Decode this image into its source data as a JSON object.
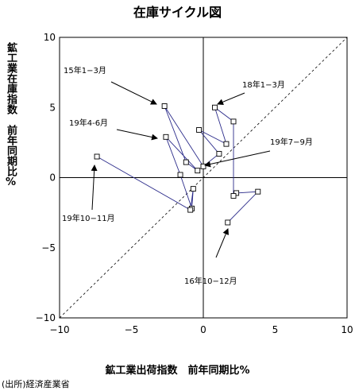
{
  "chart_data": {
    "type": "scatter",
    "title": "在庫サイクル図",
    "xlabel": "鉱工業出荷指数　前年同期比%",
    "ylabel": "鉱工業在庫指数　前年同期比%",
    "xlim": [
      -10,
      10
    ],
    "ylim": [
      -10,
      10
    ],
    "xticks": [
      -10,
      -5,
      0,
      5,
      10
    ],
    "yticks": [
      -10,
      -5,
      0,
      5,
      10
    ],
    "tick_labels_x": [
      "−10",
      "−5",
      "0",
      "5",
      "10"
    ],
    "tick_labels_y": [
      "−10",
      "−5",
      "0",
      "5",
      "10"
    ],
    "grid": false,
    "diagonal_reference_line": true,
    "series": [
      {
        "marker": "hollow-square",
        "color": "#2b2b8a",
        "points": [
          {
            "x": 1.7,
            "y": -3.2
          },
          {
            "x": 3.8,
            "y": -1.0
          },
          {
            "x": 2.3,
            "y": -1.1
          },
          {
            "x": 2.1,
            "y": -1.3
          },
          {
            "x": 2.1,
            "y": 4.0
          },
          {
            "x": 0.8,
            "y": 5.0
          },
          {
            "x": 1.6,
            "y": 2.4
          },
          {
            "x": -0.3,
            "y": 3.4
          },
          {
            "x": 1.1,
            "y": 1.7
          },
          {
            "x": 0.0,
            "y": 0.8
          },
          {
            "x": -2.7,
            "y": 5.1
          },
          {
            "x": -1.2,
            "y": 1.1
          },
          {
            "x": -0.4,
            "y": 0.5
          },
          {
            "x": -2.6,
            "y": 2.9
          },
          {
            "x": -1.6,
            "y": 0.2
          },
          {
            "x": -0.8,
            "y": -2.2
          },
          {
            "x": -0.7,
            "y": -0.8
          },
          {
            "x": -0.9,
            "y": -2.3
          },
          {
            "x": -7.4,
            "y": 1.5
          }
        ]
      }
    ],
    "annotations": [
      {
        "text": "15年1−3月"
      },
      {
        "text": "18年1−3月"
      },
      {
        "text": "19年4-6月"
      },
      {
        "text": "19年7−9月"
      },
      {
        "text": "19年10−11月"
      },
      {
        "text": "16年10−12月"
      }
    ],
    "source": "(出所)経済産業省"
  }
}
